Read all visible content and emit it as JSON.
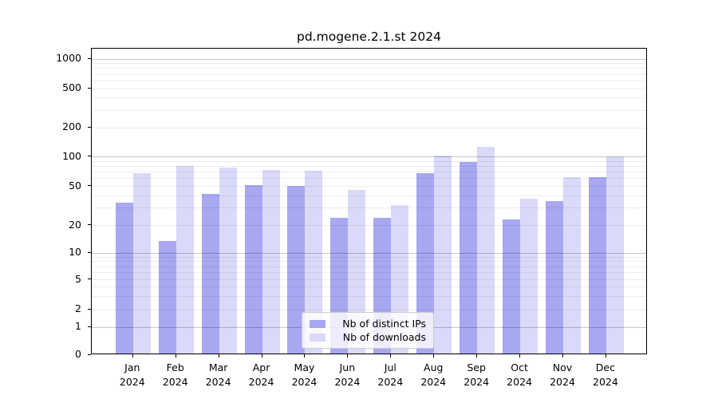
{
  "chart_data": {
    "type": "bar",
    "title": "pd.mogene.2.1.st 2024",
    "x_year": "2024",
    "categories": [
      "Jan 2024",
      "Feb 2024",
      "Mar 2024",
      "Apr 2024",
      "May 2024",
      "Jun 2024",
      "Jul 2024",
      "Aug 2024",
      "Sep 2024",
      "Oct 2024",
      "Nov 2024",
      "Dec 2024"
    ],
    "months": [
      "Jan",
      "Feb",
      "Mar",
      "Apr",
      "May",
      "Jun",
      "Jul",
      "Aug",
      "Sep",
      "Oct",
      "Nov",
      "Dec"
    ],
    "series": [
      {
        "name": "Nb of distinct IPs",
        "color": "#a7a7f2",
        "values": [
          33,
          13,
          40,
          50,
          49,
          23,
          23,
          66,
          85,
          22,
          34,
          60
        ]
      },
      {
        "name": "Nb of downloads",
        "color": "#d9d9f9",
        "values": [
          66,
          77,
          75,
          71,
          69,
          44,
          31,
          99,
          122,
          36,
          60,
          98
        ]
      }
    ],
    "xlabel": "",
    "ylabel": "",
    "y_axis": {
      "scale": "symlog",
      "range": [
        0,
        1300
      ],
      "tick_values": [
        1000,
        500,
        200,
        100,
        50,
        20,
        10,
        5,
        2,
        1,
        0
      ],
      "tick_labels": [
        "1000",
        "500",
        "200",
        "100",
        "50",
        "20",
        "10",
        "5",
        "2",
        "1",
        "0"
      ],
      "major_gridline_values": [
        1,
        10,
        100,
        1000
      ],
      "minor_gridline_values": [
        2,
        3,
        4,
        5,
        6,
        7,
        8,
        9,
        20,
        30,
        40,
        50,
        60,
        70,
        80,
        90,
        200,
        300,
        400,
        500,
        600,
        700,
        800,
        900
      ]
    },
    "grid": true,
    "legend": {
      "position": "lower center",
      "entries": [
        "Nb of distinct IPs",
        "Nb of downloads"
      ]
    }
  }
}
